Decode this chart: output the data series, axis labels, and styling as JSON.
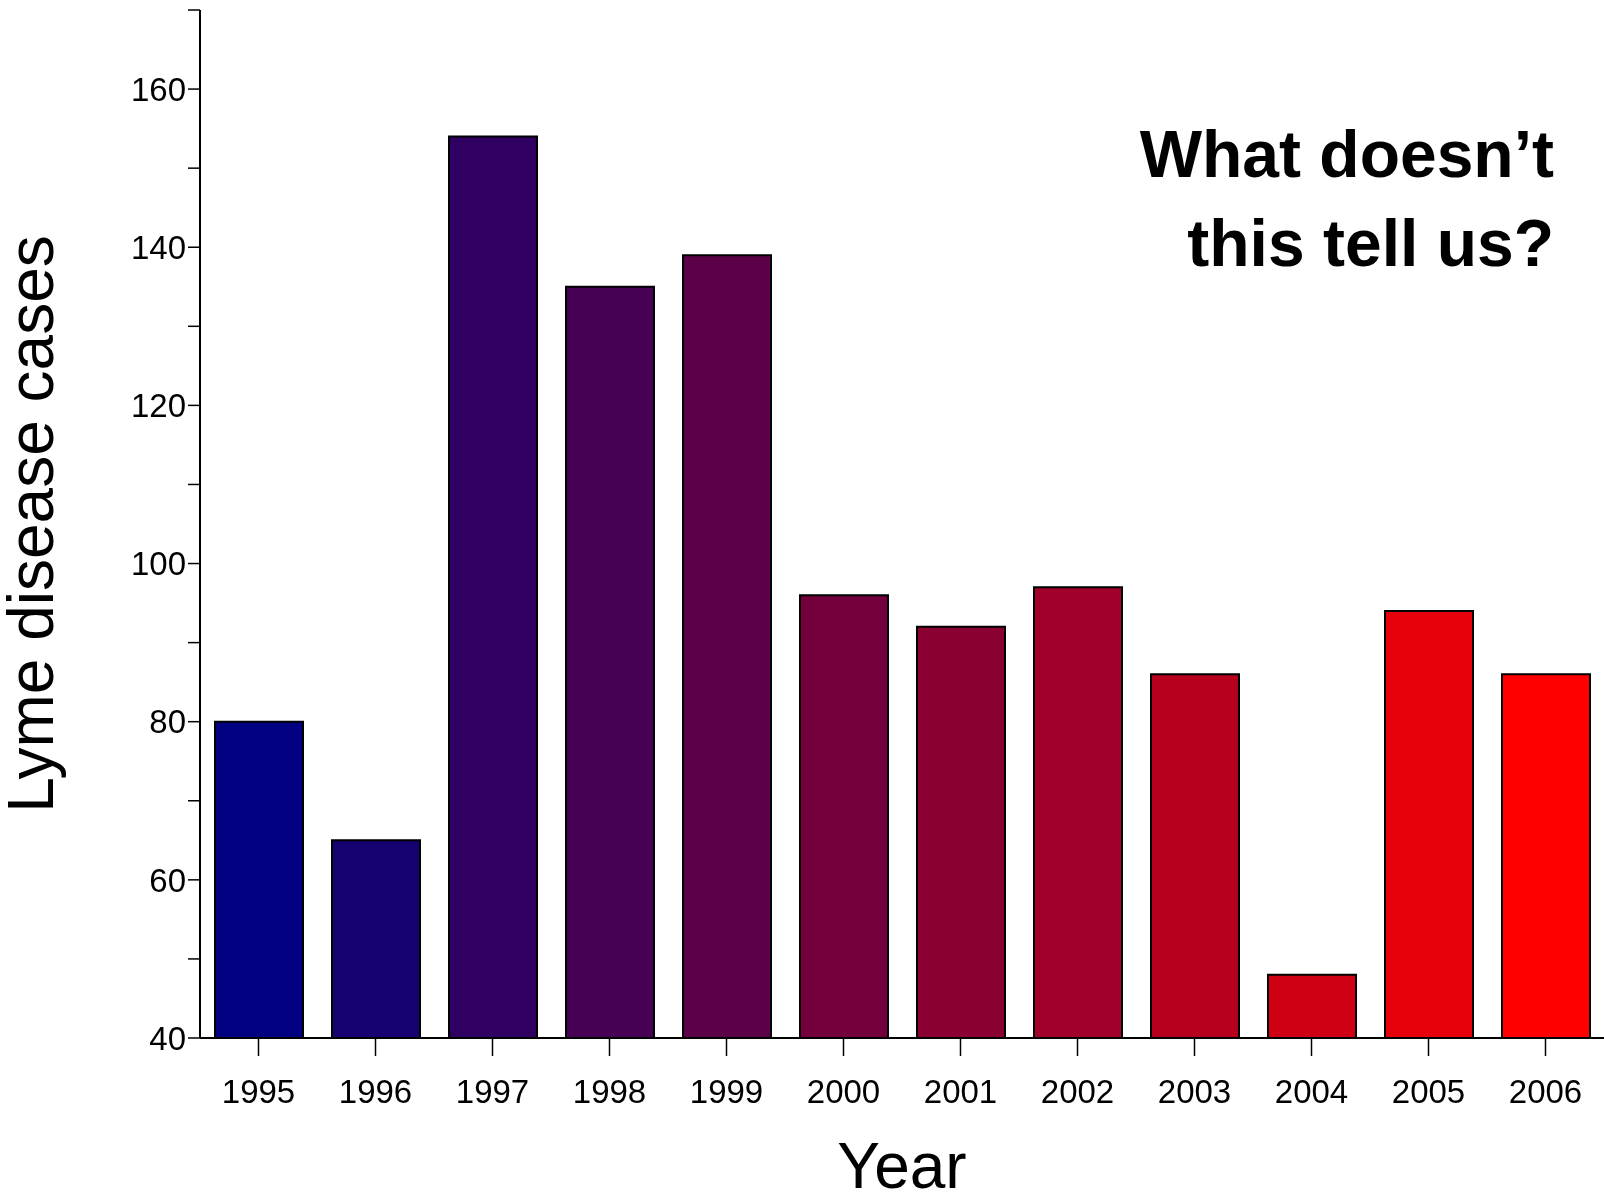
{
  "chart_data": {
    "type": "bar",
    "xlabel": "Year",
    "ylabel": "Lyme disease cases",
    "categories": [
      "1995",
      "1996",
      "1997",
      "1998",
      "1999",
      "2000",
      "2001",
      "2002",
      "2003",
      "2004",
      "2005",
      "2006"
    ],
    "values": [
      80,
      65,
      154,
      135,
      139,
      96,
      92,
      97,
      86,
      48,
      94,
      86
    ],
    "colors": [
      "#000080",
      "#170070",
      "#2f0062",
      "#460054",
      "#5c0048",
      "#73003c",
      "#8a0033",
      "#a0002a",
      "#b7001e",
      "#cf0014",
      "#e5000a",
      "#ff0000"
    ],
    "ylim": [
      40,
      170
    ],
    "yticks": [
      40,
      {
        "value": 50,
        "label": null
      },
      60,
      {
        "value": 70,
        "label": null
      },
      80,
      {
        "value": 90,
        "label": null
      },
      100,
      {
        "value": 110,
        "label": null
      },
      120,
      {
        "value": 130,
        "label": null
      },
      140,
      {
        "value": 150,
        "label": null
      },
      160,
      {
        "value": 170,
        "label": null
      }
    ],
    "annotations": [
      "What doesn’t this tell us?"
    ]
  }
}
